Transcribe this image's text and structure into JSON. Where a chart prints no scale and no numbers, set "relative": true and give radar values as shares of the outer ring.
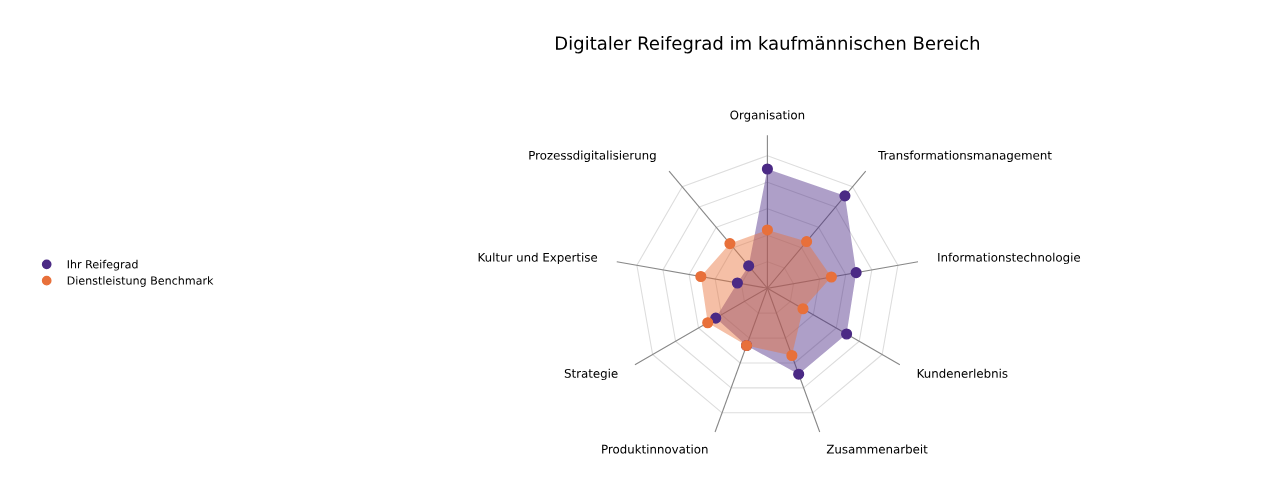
{
  "chart_data": {
    "type": "radar",
    "title": "Digitaler Reifegrad im kaufmännischen Bereich",
    "relative": true,
    "grid": true,
    "legend": "left",
    "marker": "circle",
    "categories": [
      "Organisation",
      "Transformationsmanagement",
      "Informationstechnologie",
      "Kundenerlebnis",
      "Zusammenarbeit",
      "Produktinnovation",
      "Strategie",
      "Kultur und Expertise",
      "Prozessdigitalisierung"
    ],
    "series": [
      {
        "name": "Ihr Reifegrad",
        "color": "#4b2a85",
        "values": [
          0.9,
          0.91,
          0.68,
          0.69,
          0.69,
          0.46,
          0.45,
          0.23,
          0.22
        ]
      },
      {
        "name": "Dienstleistung Benchmark",
        "color": "#e8703a",
        "values": [
          0.44,
          0.46,
          0.49,
          0.31,
          0.54,
          0.46,
          0.52,
          0.51,
          0.44
        ]
      }
    ]
  }
}
